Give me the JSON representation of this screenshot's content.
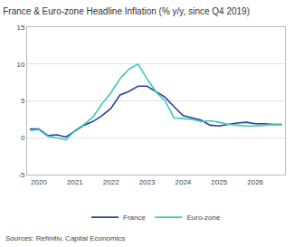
{
  "chart_data": {
    "type": "line",
    "title": "France & Euro-zone Headline Inflation (% y/y, since Q4 2019)",
    "annotations": [
      "Sources: Refinitiv, Capital Economics"
    ],
    "categories": [
      null,
      "2020",
      null,
      null,
      null,
      "2021",
      null,
      null,
      null,
      "2022",
      null,
      null,
      null,
      "2023",
      null,
      null,
      null,
      "2024",
      null,
      null,
      null,
      "2025",
      null,
      null,
      null,
      "2026",
      null,
      null,
      null
    ],
    "series": [
      {
        "name": "France",
        "color": "#23429a",
        "values": [
          1.2,
          1.2,
          0.3,
          0.4,
          0.1,
          0.9,
          1.7,
          2.2,
          3.0,
          4.0,
          5.8,
          6.3,
          7.0,
          7.0,
          6.2,
          5.5,
          4.2,
          3.0,
          2.7,
          2.4,
          1.7,
          1.6,
          1.8,
          2.0,
          2.1,
          1.9,
          1.9,
          1.8,
          1.8
        ]
      },
      {
        "name": "Euro-zone",
        "color": "#3ec9b6",
        "values": [
          1.0,
          1.1,
          0.2,
          0.0,
          -0.3,
          1.0,
          1.8,
          2.8,
          4.6,
          6.1,
          8.0,
          9.3,
          10.0,
          8.0,
          6.2,
          5.0,
          2.7,
          2.6,
          2.5,
          2.2,
          2.3,
          2.1,
          1.8,
          1.7,
          1.6,
          1.6,
          1.7,
          1.8,
          1.8
        ]
      }
    ],
    "ylim": [
      -5,
      15
    ],
    "yticks": [
      -5,
      0,
      5,
      10,
      15
    ],
    "grid": true,
    "legend": "bottom"
  }
}
